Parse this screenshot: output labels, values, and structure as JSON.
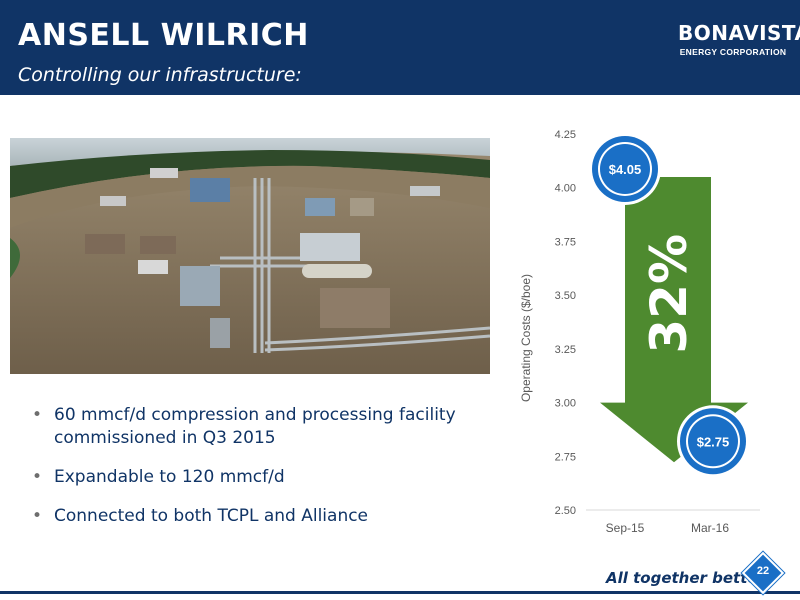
{
  "header": {
    "title": "ANSELL WILRICH",
    "subtitle": "Controlling our infrastructure:"
  },
  "logo": {
    "main": "BONAVISTA",
    "sub": "ENERGY CORPORATION"
  },
  "photo": {
    "icon": "facility-aerial-photo"
  },
  "bullets": [
    "60 mmcf/d compression and processing facility commissioned in Q3 2015",
    "Expandable to 120 mmcf/d",
    "Connected to both TCPL and Alliance"
  ],
  "chart_data": {
    "type": "bar",
    "ylabel": "Operating Costs ($/boe)",
    "categories": [
      "Sep-15",
      "Mar-16"
    ],
    "values": [
      4.05,
      2.75
    ],
    "value_labels": [
      "$4.05",
      "$2.75"
    ],
    "ylim": [
      2.5,
      4.25
    ],
    "yticks": [
      "2.50",
      "2.75",
      "3.00",
      "3.25",
      "3.50",
      "3.75",
      "4.00",
      "4.25"
    ],
    "change_label": "32%",
    "grid": false,
    "colors": {
      "arrow": "#4e8a2f",
      "marker": "#1a6fc6",
      "axis_text": "#595959"
    }
  },
  "footer": {
    "tagline": "All together better.",
    "tagline_mark": "®",
    "page_number": "22"
  },
  "colors": {
    "brand": "#103466",
    "accent": "#1a6fc6"
  }
}
